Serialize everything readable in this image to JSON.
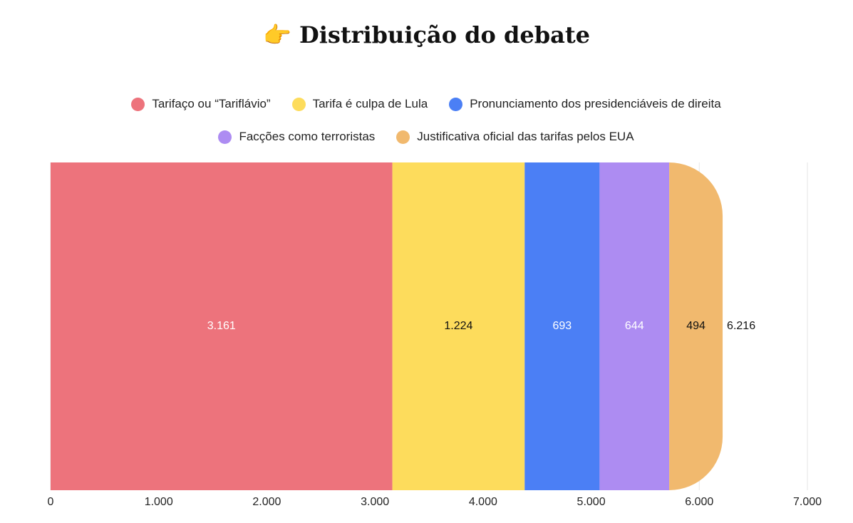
{
  "chart_data": {
    "type": "stacked-bar-horizontal",
    "title": "👉 Distribuição do debate",
    "categories": [
      null
    ],
    "series": [
      {
        "name": "Tarifaço ou “Tariflávio”",
        "color": "#ed737c",
        "label_color": "#ffffff",
        "values": [
          3161
        ],
        "value_labels": [
          "3.161"
        ]
      },
      {
        "name": "Tarifa é culpa de Lula",
        "color": "#fddc5c",
        "label_color": "#111111",
        "values": [
          1224
        ],
        "value_labels": [
          "1.224"
        ]
      },
      {
        "name": "Pronunciamento dos presidenciáveis de direita",
        "color": "#4b7ff5",
        "label_color": "#ffffff",
        "values": [
          693
        ],
        "value_labels": [
          "693"
        ]
      },
      {
        "name": "Facções como terroristas",
        "color": "#ad8cf2",
        "label_color": "#ffffff",
        "values": [
          644
        ],
        "value_labels": [
          "644"
        ]
      },
      {
        "name": "Justificativa oficial das tarifas pelos EUA",
        "color": "#f1b96e",
        "label_color": "#111111",
        "values": [
          494
        ],
        "value_labels": [
          "494"
        ]
      }
    ],
    "total": {
      "value": 6216,
      "label": "6.216"
    },
    "xlim": [
      0,
      7000
    ],
    "xticks": [
      0,
      {
        "value": 1000,
        "label": "1.000"
      },
      {
        "value": 2000,
        "label": "2.000"
      },
      {
        "value": 3000,
        "label": "3.000"
      },
      {
        "value": 4000,
        "label": "4.000"
      },
      {
        "value": 5000,
        "label": "5.000"
      },
      {
        "value": 6000,
        "label": "6.000"
      },
      {
        "value": 7000,
        "label": "7.000"
      }
    ],
    "grid": true
  }
}
